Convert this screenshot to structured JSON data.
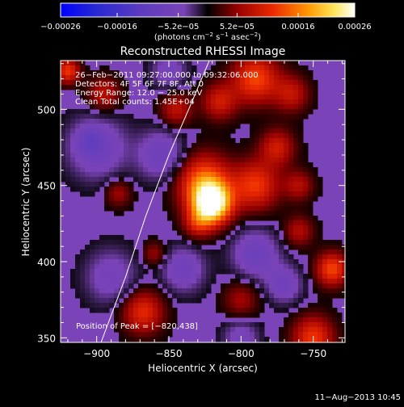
{
  "chart_data": {
    "type": "heatmap",
    "title": "Reconstructed RHESSI Image",
    "xlabel": "Heliocentric X (arcsec)",
    "ylabel": "Heliocentric Y (arcsec)",
    "xlim": [
      -925,
      -728
    ],
    "ylim": [
      347,
      532
    ],
    "x_ticks": [
      {
        "value": -900,
        "label": "−900"
      },
      {
        "value": -850,
        "label": "−850"
      },
      {
        "value": -800,
        "label": "−800"
      },
      {
        "value": -750,
        "label": "−750"
      }
    ],
    "y_ticks": [
      {
        "value": 350,
        "label": "350"
      },
      {
        "value": 400,
        "label": "400"
      },
      {
        "value": 450,
        "label": "450"
      },
      {
        "value": 500,
        "label": "500"
      }
    ],
    "colorbar": {
      "range": [
        -0.00026,
        0.00026
      ],
      "ticks": [
        {
          "value": -0.00026,
          "label": "−0.00026"
        },
        {
          "value": -0.00016,
          "label": "−0.00016"
        },
        {
          "value": -5.2e-05,
          "label": "−5.2e−05"
        },
        {
          "value": 5.2e-05,
          "label": "5.2e−05"
        },
        {
          "value": 0.00016,
          "label": "0.00016"
        },
        {
          "value": 0.00026,
          "label": "0.00026"
        }
      ],
      "unit_main": "(photons cm",
      "unit_exp1": "−2",
      "unit_mid": " s",
      "unit_exp2": "−1",
      "unit_end": " asec",
      "unit_exp3": "−2",
      "unit_close": ")"
    },
    "info_lines": [
      "26−Feb−2011 09:27:00.000 to 09:32:06.000",
      "Detectors: 4F 5F 6F 7F 8F, Att 0",
      "Energy Range: 12.0 − 25.0 keV",
      "Clean    Total counts: 1.45E+04"
    ],
    "peak_label": "Position of Peak = [−820,438]",
    "peak": {
      "x": -820,
      "y": 438,
      "value": 0.00026
    },
    "limb": [
      [
        -897,
        347
      ],
      [
        -880,
        390
      ],
      [
        -866,
        430
      ],
      [
        -850,
        470
      ],
      [
        -834,
        505
      ],
      [
        -822,
        532
      ]
    ],
    "blobs": [
      {
        "x": -820,
        "y": 438,
        "r": 13,
        "v": 0.00026
      },
      {
        "x": -826,
        "y": 452,
        "r": 18,
        "v": 0.00015
      },
      {
        "x": -790,
        "y": 450,
        "r": 16,
        "v": 0.00012
      },
      {
        "x": -830,
        "y": 425,
        "r": 10,
        "v": 8e-05
      },
      {
        "x": -790,
        "y": 520,
        "r": 16,
        "v": 0.00013
      },
      {
        "x": -815,
        "y": 505,
        "r": 12,
        "v": 9e-05
      },
      {
        "x": -845,
        "y": 500,
        "r": 11,
        "v": 8e-05
      },
      {
        "x": -765,
        "y": 510,
        "r": 12,
        "v": 8e-05
      },
      {
        "x": -775,
        "y": 475,
        "r": 12,
        "v": 9e-05
      },
      {
        "x": -760,
        "y": 450,
        "r": 10,
        "v": 7e-05
      },
      {
        "x": -868,
        "y": 367,
        "r": 14,
        "v": 0.00011
      },
      {
        "x": -750,
        "y": 350,
        "r": 14,
        "v": 0.00012
      },
      {
        "x": -737,
        "y": 395,
        "r": 11,
        "v": 0.00013
      },
      {
        "x": -760,
        "y": 420,
        "r": 10,
        "v": 7e-05
      },
      {
        "x": -800,
        "y": 375,
        "r": 12,
        "v": 6e-05
      },
      {
        "x": -895,
        "y": 510,
        "r": 11,
        "v": 8e-05
      },
      {
        "x": -885,
        "y": 445,
        "r": 9,
        "v": 6e-05
      },
      {
        "x": -920,
        "y": 525,
        "r": 8,
        "v": 0.00012
      },
      {
        "x": -905,
        "y": 480,
        "r": 8,
        "v": -4e-05
      },
      {
        "x": -860,
        "y": 405,
        "r": 8,
        "v": 6e-05
      },
      {
        "x": -900,
        "y": 475,
        "r": 20,
        "v": -8e-05
      },
      {
        "x": -890,
        "y": 390,
        "r": 18,
        "v": -6e-05
      },
      {
        "x": -855,
        "y": 470,
        "r": 16,
        "v": -8e-05
      },
      {
        "x": -840,
        "y": 395,
        "r": 15,
        "v": -7e-05
      },
      {
        "x": -790,
        "y": 405,
        "r": 16,
        "v": -8e-05
      },
      {
        "x": -800,
        "y": 350,
        "r": 12,
        "v": -6e-05
      },
      {
        "x": -770,
        "y": 385,
        "r": 12,
        "v": -7e-05
      },
      {
        "x": -850,
        "y": 525,
        "r": 12,
        "v": -6e-05
      }
    ]
  },
  "footer": {
    "timestamp": "11−Aug−2013 10:45"
  }
}
